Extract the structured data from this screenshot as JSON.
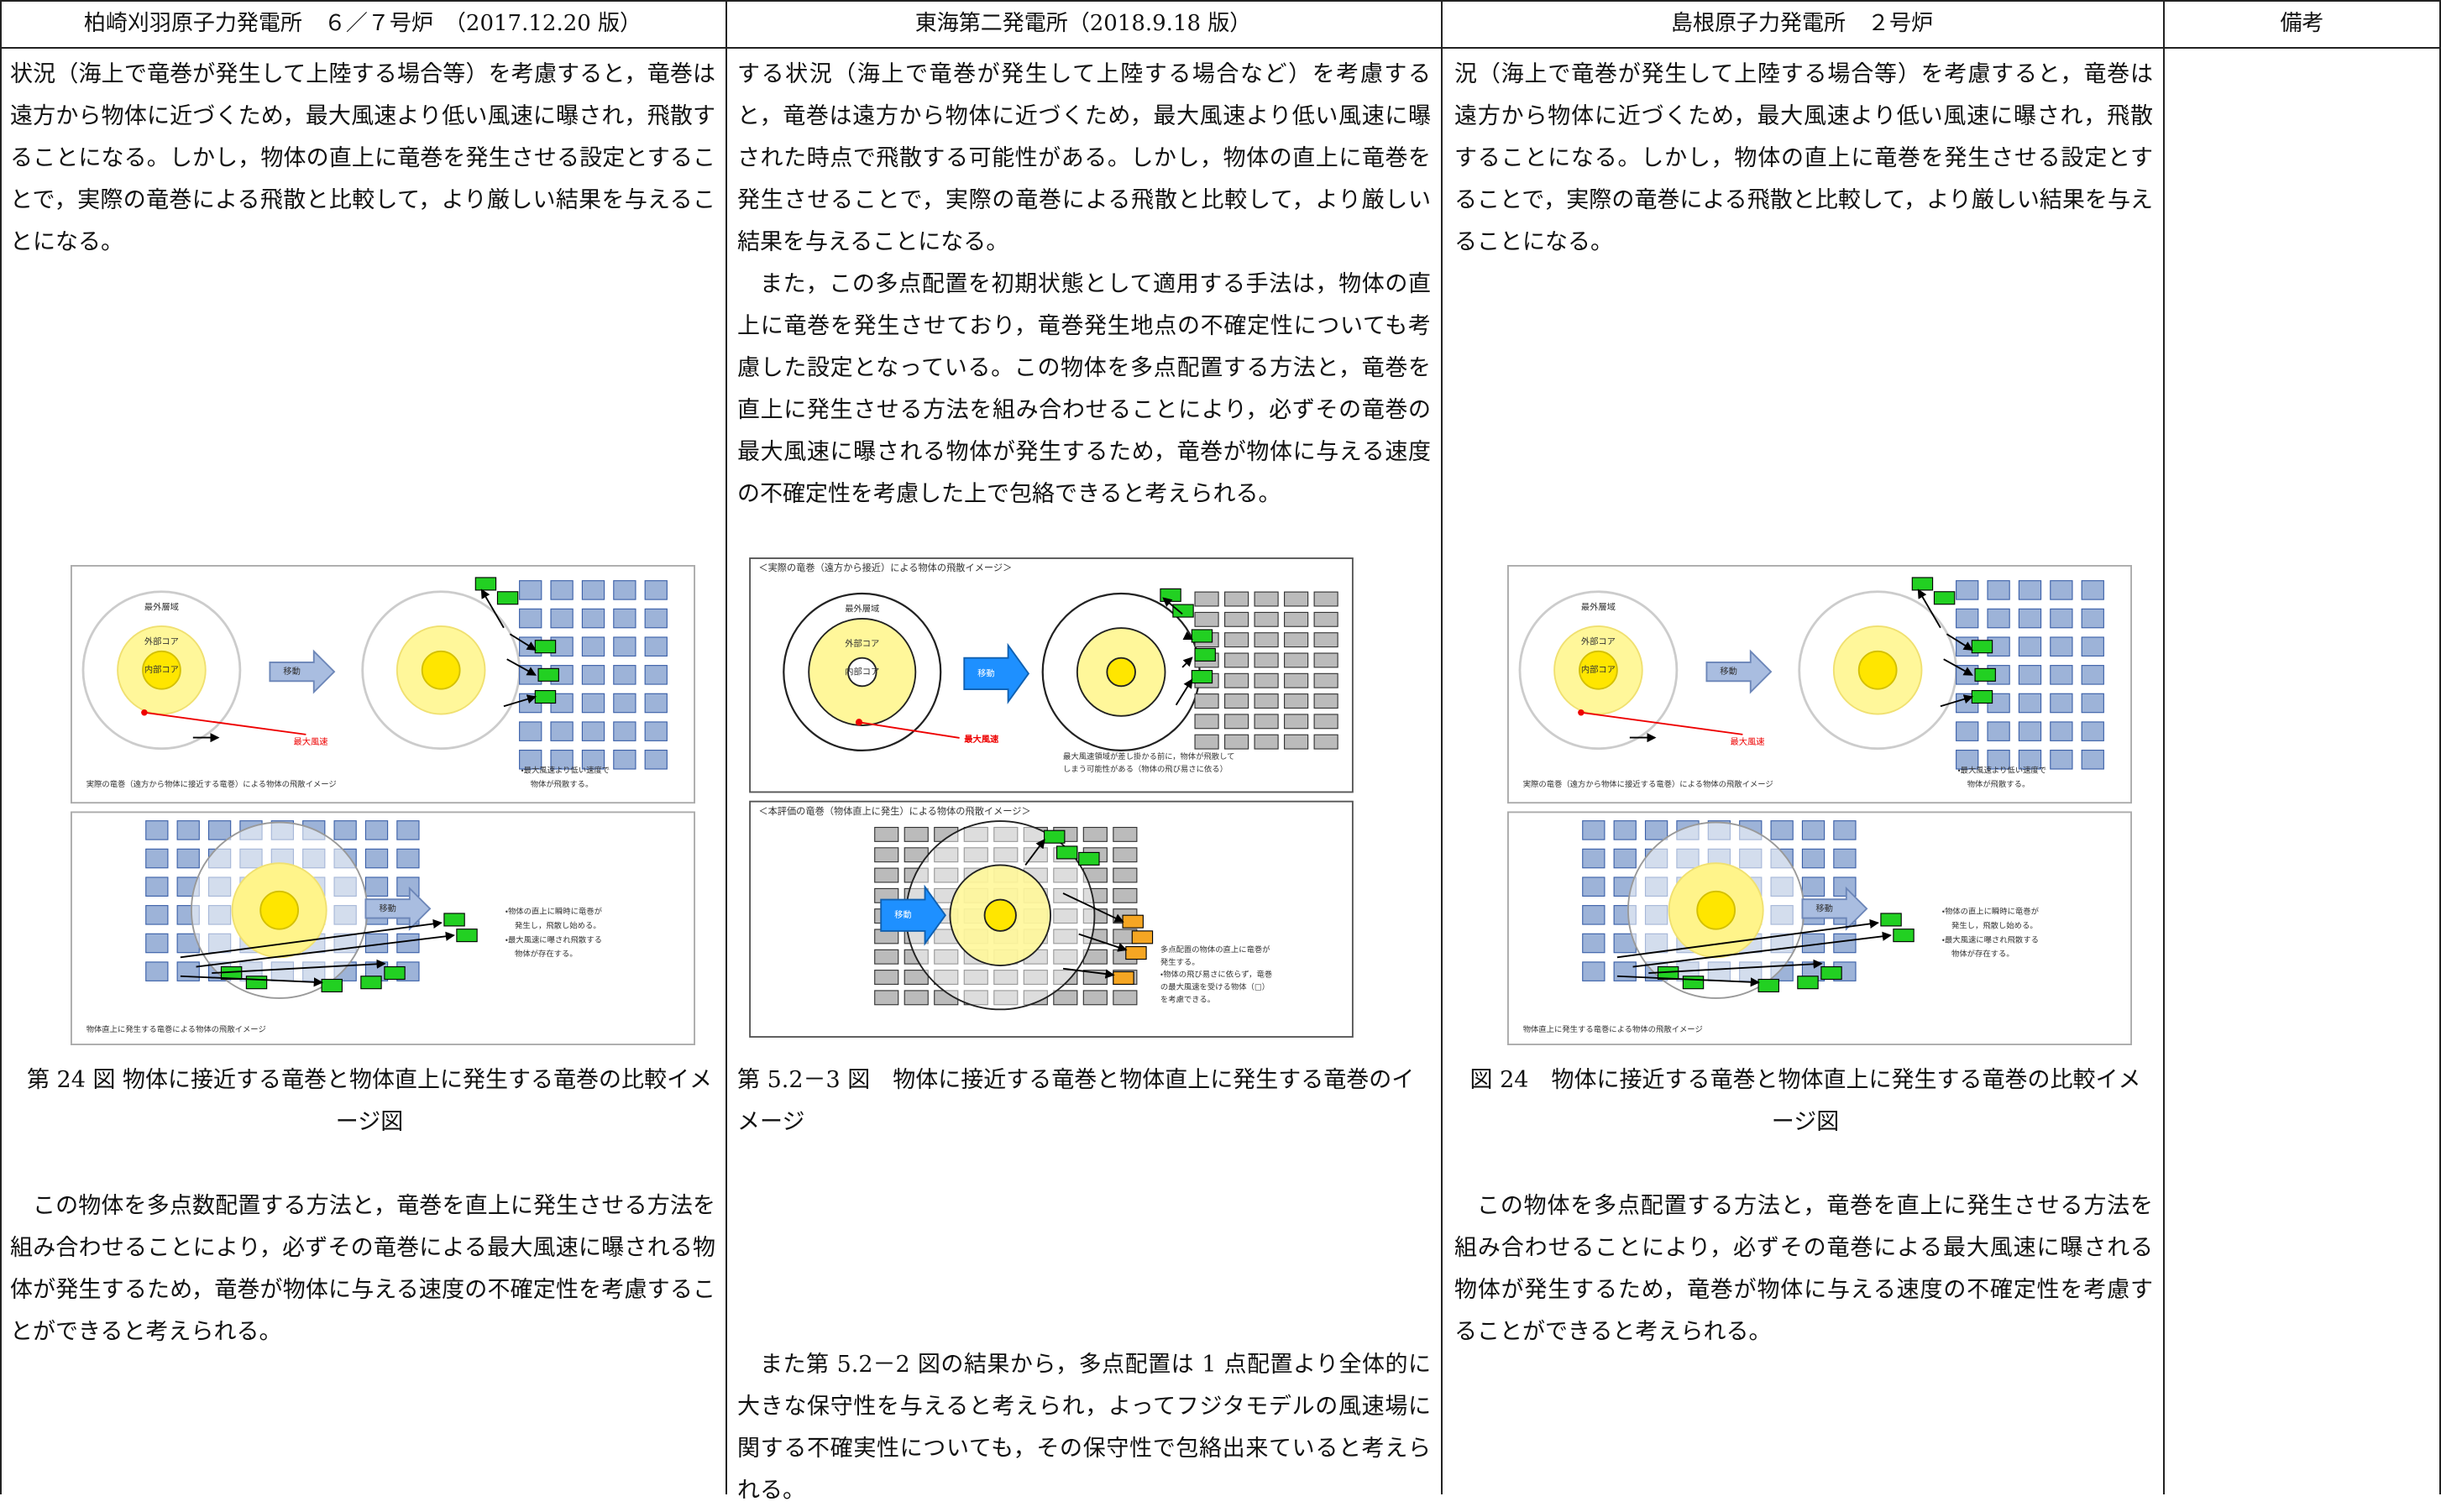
{
  "header": {
    "columns": [
      "柏崎刈羽原子力発電所　６／７号炉　（2017.12.20 版）",
      "東海第二発電所（2018.9.18 版）",
      "島根原子力発電所　２号炉",
      "備考"
    ]
  },
  "columns": [
    {
      "intro": [
        "状況（海上で竜巻が発生して上陸する場合等）を考慮すると，竜巻は遠方から物体に近づくため，最大風速より低い風速に曝され，飛散することになる。しかし，物体の直上に竜巻を発生させる設定とすることで，実際の竜巻による飛散と比較して，より厳しい結果を与えることになる。"
      ],
      "figure": {
        "outer": "最外層域",
        "outer_core": "外部コア",
        "inner_core": "内部コア",
        "move_top": "移動",
        "max_wind": "最大風速",
        "top_caption": "実際の竜巻（遠方から物体に接近する竜巻）による物体の飛散イメージ",
        "top_note": [
          "・最大風速より低い速度で",
          "物体が飛散する。"
        ],
        "move_bottom": "移動",
        "bottom_note": [
          "・物体の直上に瞬時に竜巻が",
          "発生し，飛散し始める。",
          "・最大風速に曝され飛散する",
          "物体が存在する。"
        ],
        "bottom_caption": "物体直上に発生する竜巻による物体の飛散イメージ"
      },
      "caption": "第 24 図 物体に接近する竜巻と物体直上に発生する竜巻の比較イメージ図",
      "after": [
        "この物体を多点数配置する方法と，竜巻を直上に発生させる方法を組み合わせることにより，必ずその竜巻による最大風速に曝される物体が発生するため，竜巻が物体に与える速度の不確定性を考慮することができると考えられる。"
      ]
    },
    {
      "intro": [
        "する状況（海上で竜巻が発生して上陸する場合など）を考慮すると，竜巻は遠方から物体に近づくため，最大風速より低い風速に曝された時点で飛散する可能性がある。しかし，物体の直上に竜巻を発生させることで，実際の竜巻による飛散と比較して，より厳しい結果を与えることになる。",
        "また，この多点配置を初期状態として適用する手法は，物体の直上に竜巻を発生させており，竜巻発生地点の不確定性についても考慮した設定となっている。この物体を多点配置する方法と，竜巻を直上に発生させる方法を組み合わせることにより，必ずその竜巻の最大風速に曝される物体が発生するため，竜巻が物体に与える速度の不確定性を考慮した上で包絡できると考えられる。"
      ],
      "figure": {
        "top_title": "＜実際の竜巻（遠方から接近）による物体の飛散イメージ＞",
        "outer": "最外層域",
        "outer_core": "外部コア",
        "inner_core": "内部コア",
        "move_top": "移動",
        "max_wind": "最大風速",
        "top_note": [
          "最大風速領域が差し掛かる前に，物体が飛散して",
          "しまう可能性がある（物体の飛び易さに依る）"
        ],
        "bottom_title": "＜本評価の竜巻（物体直上に発生）による物体の飛散イメージ＞",
        "move_bottom": "移動",
        "bottom_note": [
          "多点配置の物体の直上に竜巻が",
          "発生する。",
          "・物体の飛び易さに依らず，竜巻",
          "の最大風速を受ける物体（□）",
          "を考慮できる。"
        ]
      },
      "caption": "第 5.2－3 図　物体に接近する竜巻と物体直上に発生する竜巻のイメージ",
      "after": [
        "また第 5.2－2 図の結果から，多点配置は 1 点配置より全体的に大きな保守性を与えると考えられ，よってフジタモデルの風速場に関する不確実性についても，その保守性で包絡出来ていると考えられる。"
      ]
    },
    {
      "intro": [
        "況（海上で竜巻が発生して上陸する場合等）を考慮すると，竜巻は遠方から物体に近づくため，最大風速より低い風速に曝され，飛散することになる。しかし，物体の直上に竜巻を発生させる設定とすることで，実際の竜巻による飛散と比較して，より厳しい結果を与えることになる。"
      ],
      "figure": {
        "outer": "最外層域",
        "outer_core": "外部コア",
        "inner_core": "内部コア",
        "move_top": "移動",
        "max_wind": "最大風速",
        "top_caption": "実際の竜巻（遠方から物体に接近する竜巻）による物体の飛散イメージ",
        "top_note": [
          "・最大風速より低い速度で",
          "物体が飛散する。"
        ],
        "move_bottom": "移動",
        "bottom_note": [
          "・物体の直上に瞬時に竜巻が",
          "発生し，飛散し始める。",
          "・最大風速に曝され飛散する",
          "物体が存在する。"
        ],
        "bottom_caption": "物体直上に発生する竜巻による物体の飛散イメージ"
      },
      "caption": "図 24　物体に接近する竜巻と物体直上に発生する竜巻の比較イメージ図",
      "after": [
        "この物体を多点配置する方法と，竜巻を直上に発生させる方法を組み合わせることにより，必ずその竜巻による最大風速に曝される物体が発生するため，竜巻が物体に与える速度の不確定性を考慮することができると考えられる。"
      ]
    }
  ]
}
